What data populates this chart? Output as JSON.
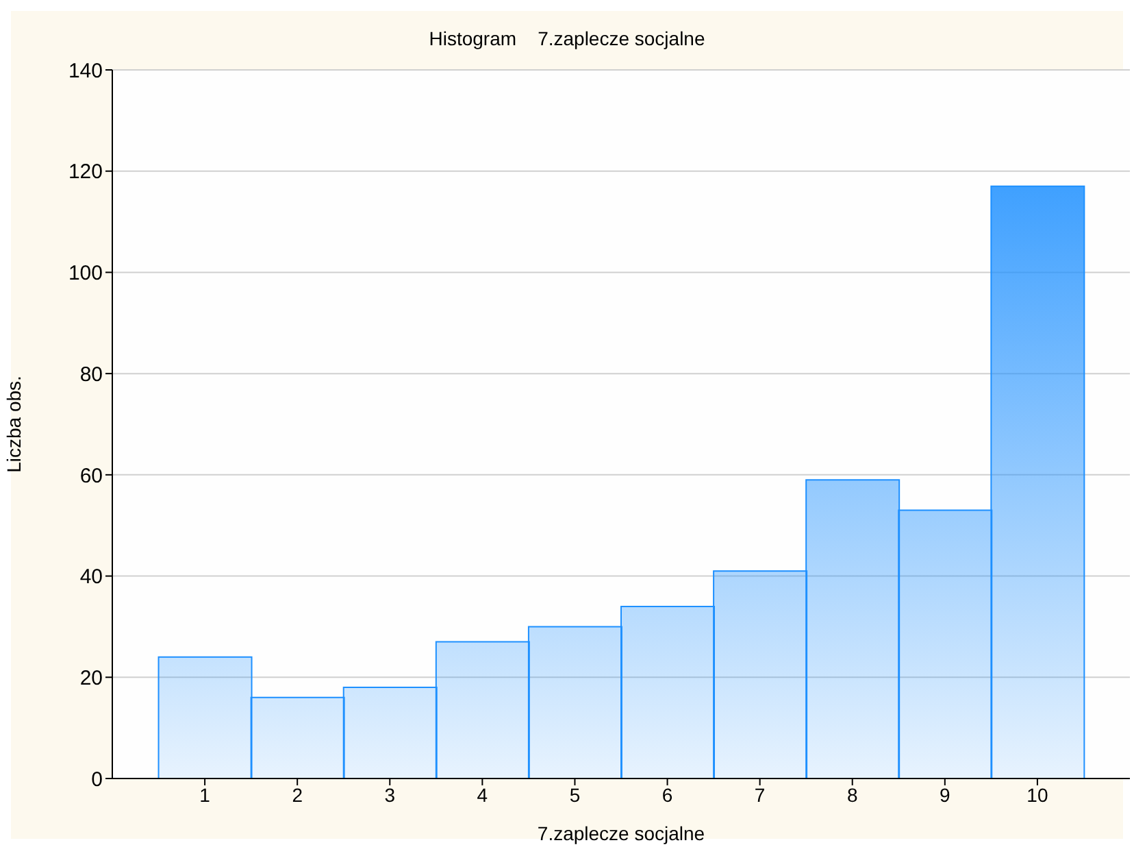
{
  "chart_data": {
    "type": "bar",
    "title": "Histogram    7.zaplecze socjalne",
    "xlabel": "7.zaplecze socjalne",
    "ylabel": "Liczba obs.",
    "categories": [
      "1",
      "2",
      "3",
      "4",
      "5",
      "6",
      "7",
      "8",
      "9",
      "10"
    ],
    "values": [
      24,
      16,
      18,
      27,
      30,
      34,
      41,
      59,
      53,
      117
    ],
    "color": "#1e90ff",
    "ylim": [
      0,
      140
    ],
    "yticks": [
      0,
      20,
      40,
      60,
      80,
      100,
      120,
      140
    ],
    "grid": "y"
  }
}
